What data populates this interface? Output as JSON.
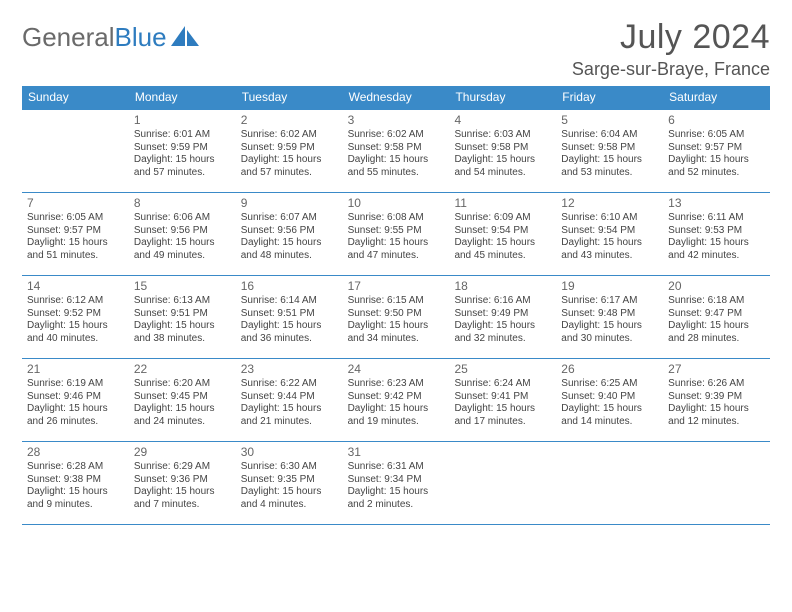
{
  "logo": {
    "text1": "General",
    "text2": "Blue"
  },
  "title": "July 2024",
  "location": "Sarge-sur-Braye, France",
  "colors": {
    "header_bg": "#3a8ac8",
    "header_fg": "#ffffff",
    "rule": "#3a8ac8",
    "title_color": "#555555",
    "logo_gray": "#6a6a6a",
    "logo_blue": "#2e7cbf",
    "body_text": "#444444",
    "daynum_color": "#666666",
    "background": "#ffffff"
  },
  "dow": [
    "Sunday",
    "Monday",
    "Tuesday",
    "Wednesday",
    "Thursday",
    "Friday",
    "Saturday"
  ],
  "labels": {
    "sunrise": "Sunrise:",
    "sunset": "Sunset:",
    "daylight": "Daylight:"
  },
  "weeks": [
    [
      null,
      {
        "n": "1",
        "sr": "6:01 AM",
        "ss": "9:59 PM",
        "dl": "15 hours and 57 minutes."
      },
      {
        "n": "2",
        "sr": "6:02 AM",
        "ss": "9:59 PM",
        "dl": "15 hours and 57 minutes."
      },
      {
        "n": "3",
        "sr": "6:02 AM",
        "ss": "9:58 PM",
        "dl": "15 hours and 55 minutes."
      },
      {
        "n": "4",
        "sr": "6:03 AM",
        "ss": "9:58 PM",
        "dl": "15 hours and 54 minutes."
      },
      {
        "n": "5",
        "sr": "6:04 AM",
        "ss": "9:58 PM",
        "dl": "15 hours and 53 minutes."
      },
      {
        "n": "6",
        "sr": "6:05 AM",
        "ss": "9:57 PM",
        "dl": "15 hours and 52 minutes."
      }
    ],
    [
      {
        "n": "7",
        "sr": "6:05 AM",
        "ss": "9:57 PM",
        "dl": "15 hours and 51 minutes."
      },
      {
        "n": "8",
        "sr": "6:06 AM",
        "ss": "9:56 PM",
        "dl": "15 hours and 49 minutes."
      },
      {
        "n": "9",
        "sr": "6:07 AM",
        "ss": "9:56 PM",
        "dl": "15 hours and 48 minutes."
      },
      {
        "n": "10",
        "sr": "6:08 AM",
        "ss": "9:55 PM",
        "dl": "15 hours and 47 minutes."
      },
      {
        "n": "11",
        "sr": "6:09 AM",
        "ss": "9:54 PM",
        "dl": "15 hours and 45 minutes."
      },
      {
        "n": "12",
        "sr": "6:10 AM",
        "ss": "9:54 PM",
        "dl": "15 hours and 43 minutes."
      },
      {
        "n": "13",
        "sr": "6:11 AM",
        "ss": "9:53 PM",
        "dl": "15 hours and 42 minutes."
      }
    ],
    [
      {
        "n": "14",
        "sr": "6:12 AM",
        "ss": "9:52 PM",
        "dl": "15 hours and 40 minutes."
      },
      {
        "n": "15",
        "sr": "6:13 AM",
        "ss": "9:51 PM",
        "dl": "15 hours and 38 minutes."
      },
      {
        "n": "16",
        "sr": "6:14 AM",
        "ss": "9:51 PM",
        "dl": "15 hours and 36 minutes."
      },
      {
        "n": "17",
        "sr": "6:15 AM",
        "ss": "9:50 PM",
        "dl": "15 hours and 34 minutes."
      },
      {
        "n": "18",
        "sr": "6:16 AM",
        "ss": "9:49 PM",
        "dl": "15 hours and 32 minutes."
      },
      {
        "n": "19",
        "sr": "6:17 AM",
        "ss": "9:48 PM",
        "dl": "15 hours and 30 minutes."
      },
      {
        "n": "20",
        "sr": "6:18 AM",
        "ss": "9:47 PM",
        "dl": "15 hours and 28 minutes."
      }
    ],
    [
      {
        "n": "21",
        "sr": "6:19 AM",
        "ss": "9:46 PM",
        "dl": "15 hours and 26 minutes."
      },
      {
        "n": "22",
        "sr": "6:20 AM",
        "ss": "9:45 PM",
        "dl": "15 hours and 24 minutes."
      },
      {
        "n": "23",
        "sr": "6:22 AM",
        "ss": "9:44 PM",
        "dl": "15 hours and 21 minutes."
      },
      {
        "n": "24",
        "sr": "6:23 AM",
        "ss": "9:42 PM",
        "dl": "15 hours and 19 minutes."
      },
      {
        "n": "25",
        "sr": "6:24 AM",
        "ss": "9:41 PM",
        "dl": "15 hours and 17 minutes."
      },
      {
        "n": "26",
        "sr": "6:25 AM",
        "ss": "9:40 PM",
        "dl": "15 hours and 14 minutes."
      },
      {
        "n": "27",
        "sr": "6:26 AM",
        "ss": "9:39 PM",
        "dl": "15 hours and 12 minutes."
      }
    ],
    [
      {
        "n": "28",
        "sr": "6:28 AM",
        "ss": "9:38 PM",
        "dl": "15 hours and 9 minutes."
      },
      {
        "n": "29",
        "sr": "6:29 AM",
        "ss": "9:36 PM",
        "dl": "15 hours and 7 minutes."
      },
      {
        "n": "30",
        "sr": "6:30 AM",
        "ss": "9:35 PM",
        "dl": "15 hours and 4 minutes."
      },
      {
        "n": "31",
        "sr": "6:31 AM",
        "ss": "9:34 PM",
        "dl": "15 hours and 2 minutes."
      },
      null,
      null,
      null
    ]
  ]
}
